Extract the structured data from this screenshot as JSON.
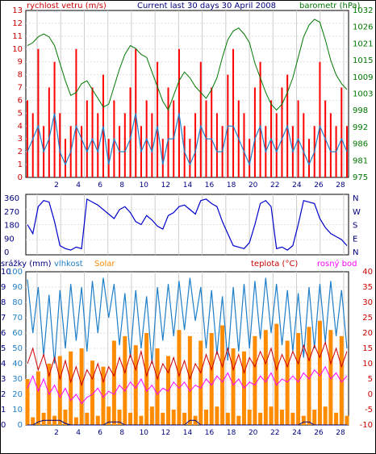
{
  "header": {
    "wind_label": "rychlost vetru (m/s)",
    "title": "Current last 30 days 30 April 2008",
    "baro_label": "barometr (hPa)"
  },
  "legend": {
    "rain_label": "srážky (mm)",
    "humidity_label": "vlhkost",
    "solar_label": "Solar",
    "temp_label": "teplota (°C)",
    "dew_label": "rosný bod"
  },
  "colors": {
    "wind_avg": "#1f7fc8",
    "wind_gust": "#ff0000",
    "pressure": "#007700",
    "direction": "#0000cc",
    "humidity": "#1f7fc8",
    "solar": "#ff8c00",
    "temperature": "#cc0000",
    "dew": "#ff00ff",
    "rain": "#000080",
    "grid": "#cccccc"
  },
  "chart_data": [
    {
      "type": "line",
      "id": "wind-pressure",
      "title": "Current last 30 days 30 April 2008",
      "x_ticks": [
        "2",
        "4",
        "6",
        "8",
        "10",
        "12",
        "14",
        "16",
        "18",
        "20",
        "22",
        "24",
        "26",
        "28"
      ],
      "ylabel_left": "rychlost vetru (m/s)",
      "ylabel_right": "barometr (hPa)",
      "yticks_left": [
        "0",
        "1",
        "2",
        "3",
        "4",
        "5",
        "6",
        "7",
        "8",
        "9",
        "10",
        "11",
        "12",
        "13"
      ],
      "yticks_right": [
        "975",
        "981",
        "986",
        "992",
        "998",
        "1003",
        "1009",
        "1015",
        "1021",
        "1026",
        "1032"
      ],
      "ylim_left": [
        0,
        13
      ],
      "ylim_right": [
        975,
        1032
      ],
      "series": [
        {
          "name": "rychlost vetru (m/s)",
          "role": "gust",
          "values": [
            6,
            5,
            10,
            4,
            7,
            9,
            5,
            3,
            4,
            10,
            4,
            6,
            7,
            5,
            8,
            3,
            6,
            4,
            5,
            7,
            10,
            4,
            6,
            5,
            9,
            3,
            7,
            6,
            10,
            4,
            3,
            5,
            9,
            6,
            7,
            5,
            4,
            8,
            10,
            6,
            5,
            3,
            7,
            9,
            4,
            6,
            5,
            7,
            8,
            4,
            6,
            5,
            3,
            4,
            9,
            6,
            5,
            4,
            7,
            4
          ]
        },
        {
          "name": "wind avg",
          "role": "avg",
          "values": [
            2,
            3,
            4,
            2,
            3,
            5,
            2,
            1,
            2,
            4,
            3,
            2,
            3,
            2,
            4,
            1,
            3,
            2,
            2,
            3,
            5,
            2,
            3,
            2,
            4,
            1,
            3,
            3,
            5,
            2,
            1,
            2,
            4,
            3,
            3,
            2,
            2,
            4,
            4,
            3,
            2,
            1,
            3,
            4,
            2,
            3,
            2,
            3,
            4,
            2,
            3,
            2,
            1,
            2,
            4,
            3,
            2,
            2,
            3,
            2
          ]
        },
        {
          "name": "barometr (hPa)",
          "role": "pressure",
          "values": [
            1020,
            1021,
            1023,
            1024,
            1023,
            1020,
            1014,
            1008,
            1003,
            1004,
            1007,
            1008,
            1005,
            1002,
            999,
            1000,
            1006,
            1012,
            1017,
            1020,
            1019,
            1017,
            1016,
            1011,
            1006,
            1001,
            998,
            1003,
            1008,
            1011,
            1009,
            1006,
            1004,
            1002,
            1005,
            1009,
            1016,
            1022,
            1025,
            1026,
            1024,
            1021,
            1014,
            1009,
            1004,
            1000,
            998,
            1000,
            1004,
            1009,
            1016,
            1023,
            1027,
            1029,
            1028,
            1022,
            1015,
            1010,
            1007,
            1005
          ]
        }
      ]
    },
    {
      "type": "line",
      "id": "wind-direction",
      "yticks_left": [
        "360",
        "270",
        "180",
        "90",
        "0"
      ],
      "yticks_right": [
        "N",
        "W",
        "S",
        "E",
        "N"
      ],
      "ylim": [
        0,
        360
      ],
      "series": [
        {
          "name": "direction",
          "values": [
            180,
            120,
            300,
            340,
            330,
            200,
            40,
            20,
            10,
            30,
            20,
            350,
            330,
            310,
            280,
            250,
            220,
            280,
            300,
            260,
            200,
            180,
            240,
            210,
            170,
            150,
            240,
            260,
            300,
            310,
            280,
            250,
            340,
            350,
            320,
            300,
            200,
            120,
            40,
            30,
            20,
            60,
            180,
            320,
            340,
            300,
            20,
            30,
            10,
            40,
            180,
            340,
            330,
            320,
            220,
            160,
            120,
            100,
            80,
            40
          ]
        }
      ]
    },
    {
      "type": "line",
      "id": "rain-hum-temp",
      "ylabel_left": "srážky (mm)",
      "ylabel_right": "teplota (°C)",
      "yticks_left_rain": [
        "0",
        "1",
        "2",
        "3",
        "4",
        "5",
        "6",
        "7",
        "8",
        "9",
        "10"
      ],
      "yticks_left_hum": [
        "0",
        "10",
        "20",
        "30",
        "40",
        "50",
        "60",
        "70",
        "80",
        "90",
        "100"
      ],
      "yticks_right": [
        "40",
        "35",
        "30",
        "25",
        "20",
        "15",
        "10",
        "5",
        "0",
        "-5",
        "-10"
      ],
      "ylim_hum": [
        0,
        100
      ],
      "ylim_temp": [
        -10,
        40
      ],
      "series": [
        {
          "name": "vlhkost",
          "values": [
            95,
            60,
            90,
            45,
            85,
            40,
            88,
            50,
            92,
            55,
            90,
            48,
            94,
            60,
            96,
            70,
            92,
            52,
            86,
            44,
            88,
            50,
            84,
            40,
            90,
            55,
            92,
            58,
            94,
            62,
            96,
            68,
            90,
            50,
            88,
            46,
            84,
            42,
            90,
            48,
            92,
            50,
            94,
            56,
            96,
            60,
            92,
            52,
            88,
            48,
            86,
            44,
            90,
            50,
            92,
            54,
            94,
            58,
            88,
            50
          ]
        },
        {
          "name": "teplota (°C)",
          "values": [
            10,
            15,
            8,
            13,
            6,
            12,
            5,
            11,
            4,
            9,
            3,
            8,
            5,
            10,
            4,
            9,
            6,
            12,
            7,
            13,
            8,
            14,
            6,
            11,
            5,
            10,
            7,
            12,
            6,
            11,
            5,
            10,
            7,
            13,
            8,
            14,
            9,
            15,
            8,
            13,
            7,
            12,
            9,
            14,
            10,
            15,
            8,
            13,
            9,
            14,
            10,
            16,
            11,
            16,
            12,
            17,
            10,
            15,
            9,
            14
          ]
        },
        {
          "name": "rosný bod",
          "values": [
            2,
            6,
            1,
            5,
            0,
            3,
            -1,
            2,
            -2,
            0,
            -3,
            -1,
            0,
            2,
            -1,
            1,
            0,
            3,
            1,
            4,
            2,
            5,
            1,
            3,
            0,
            2,
            1,
            4,
            2,
            4,
            1,
            3,
            2,
            5,
            3,
            6,
            4,
            7,
            3,
            5,
            2,
            4,
            3,
            6,
            4,
            7,
            3,
            5,
            4,
            6,
            4,
            7,
            5,
            8,
            6,
            9,
            5,
            7,
            4,
            6
          ]
        },
        {
          "name": "Solar",
          "values": [
            30,
            5,
            35,
            8,
            40,
            6,
            45,
            10,
            48,
            5,
            50,
            8,
            42,
            6,
            38,
            12,
            55,
            10,
            58,
            8,
            52,
            6,
            60,
            12,
            50,
            8,
            45,
            10,
            62,
            8,
            58,
            6,
            55,
            10,
            60,
            12,
            65,
            8,
            50,
            6,
            48,
            10,
            58,
            8,
            62,
            12,
            66,
            10,
            55,
            8,
            60,
            6,
            64,
            10,
            68,
            12,
            62,
            8,
            58,
            6
          ]
        },
        {
          "name": "srážky (mm)",
          "values": [
            0,
            0,
            0.2,
            0.3,
            0.3,
            0.3,
            0.3,
            0.1,
            0,
            0,
            0,
            0,
            0,
            0,
            0,
            0.2,
            0.2,
            0.2,
            0,
            0,
            0,
            0,
            0,
            0,
            0,
            0,
            0,
            0,
            0,
            0,
            0.3,
            0.3,
            0,
            0,
            0,
            0,
            0,
            0,
            0,
            0,
            0,
            0,
            0,
            0,
            0,
            0,
            0,
            0,
            0,
            0,
            0,
            0.2,
            0.2,
            0,
            0,
            0,
            0,
            0,
            0,
            0
          ]
        }
      ]
    }
  ]
}
